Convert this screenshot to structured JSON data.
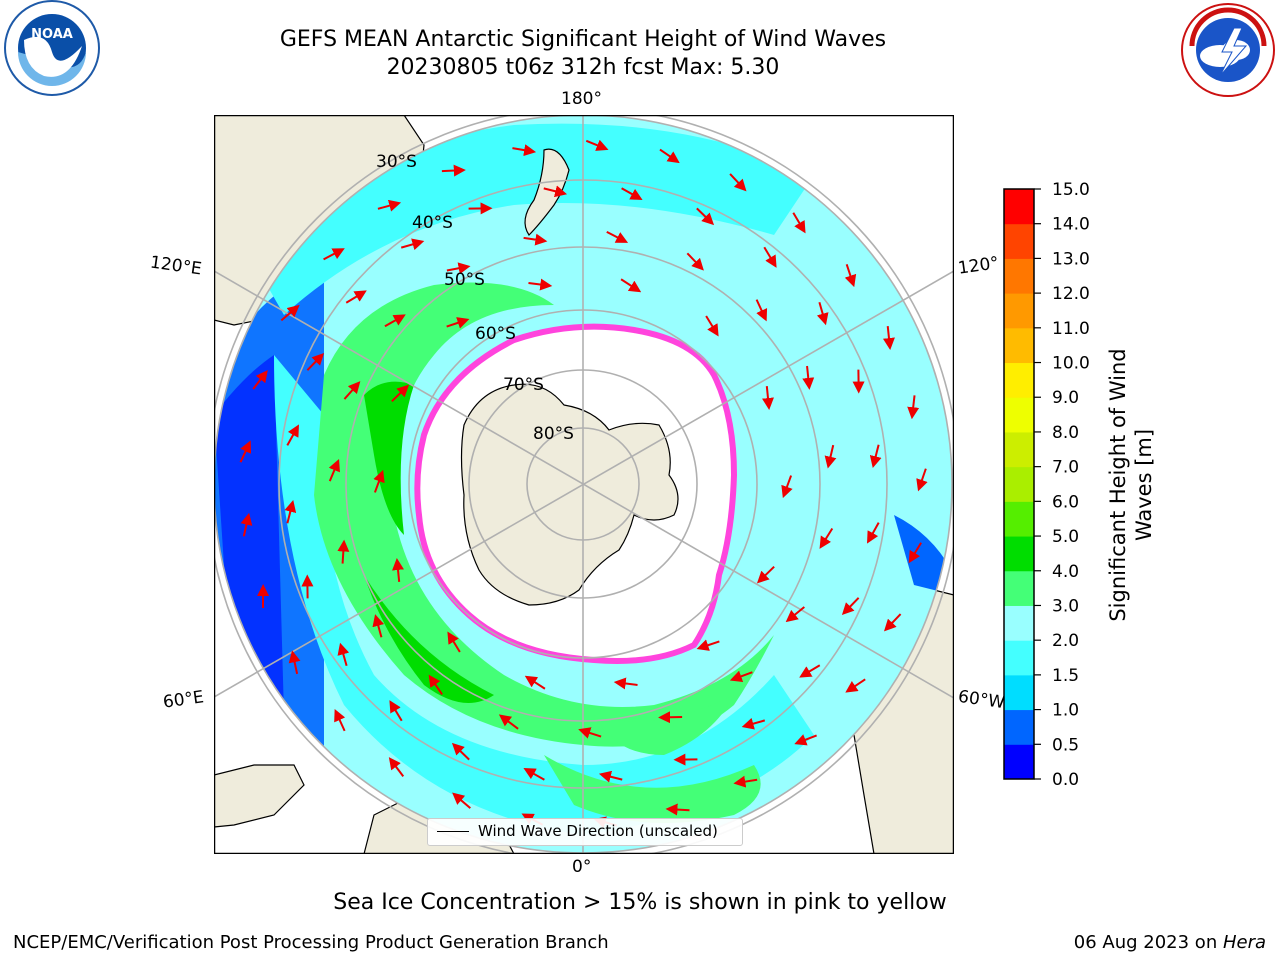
{
  "title": {
    "line1": "GEFS MEAN Antarctic Significant Height of Wind Waves",
    "line2": "20230805 t06z 312h fcst   Max: 5.30"
  },
  "logos": {
    "left": {
      "name": "noaa-logo",
      "text": "NOAA",
      "ring_text": "NATIONAL OCEANIC AND ATMOSPHERIC ADMINISTRATION · U.S. DEPARTMENT OF COMMERCE"
    },
    "right": {
      "name": "nws-logo",
      "ring_text": "NATIONAL WEATHER SERVICE"
    }
  },
  "map": {
    "projection": "south polar stereographic",
    "longitude_labels": {
      "top": "180°",
      "bottom": "0°",
      "upper_left": "120°E",
      "upper_right": "120°",
      "lower_left": "60°E",
      "lower_right": "60°W"
    },
    "latitude_labels": [
      "30°S",
      "40°S",
      "50°S",
      "60°S",
      "70°S",
      "80°S"
    ],
    "legend": "Wind Wave Direction (unscaled)",
    "colors": {
      "land": "#efecdc",
      "ice_edge": "#ff44dd",
      "arrow": "#ee0000",
      "grid": "#b0b0b0"
    }
  },
  "colorbar": {
    "label_line1": "Significant Height of Wind",
    "label_line2": "Waves [m]",
    "ticks": [
      "0.0",
      "0.5",
      "1.0",
      "1.5",
      "2.0",
      "3.0",
      "4.0",
      "5.0",
      "6.0",
      "7.0",
      "8.0",
      "9.0",
      "10.0",
      "11.0",
      "12.0",
      "13.0",
      "14.0",
      "15.0"
    ],
    "colors": [
      "#0000ff",
      "#0066ff",
      "#00ddff",
      "#44ffff",
      "#99ffff",
      "#44ff77",
      "#00dd00",
      "#55ee00",
      "#aaee00",
      "#ccee00",
      "#eeff00",
      "#ffee00",
      "#ffbb00",
      "#ff9900",
      "#ff7700",
      "#ff4400",
      "#ff0000"
    ]
  },
  "caption": "Sea Ice Concentration > 15% is shown in pink to yellow",
  "footer": {
    "left": "NCEP/EMC/Verification Post Processing Product Generation Branch",
    "right_prefix": "06 Aug 2023 on ",
    "right_italic": "Hera"
  }
}
